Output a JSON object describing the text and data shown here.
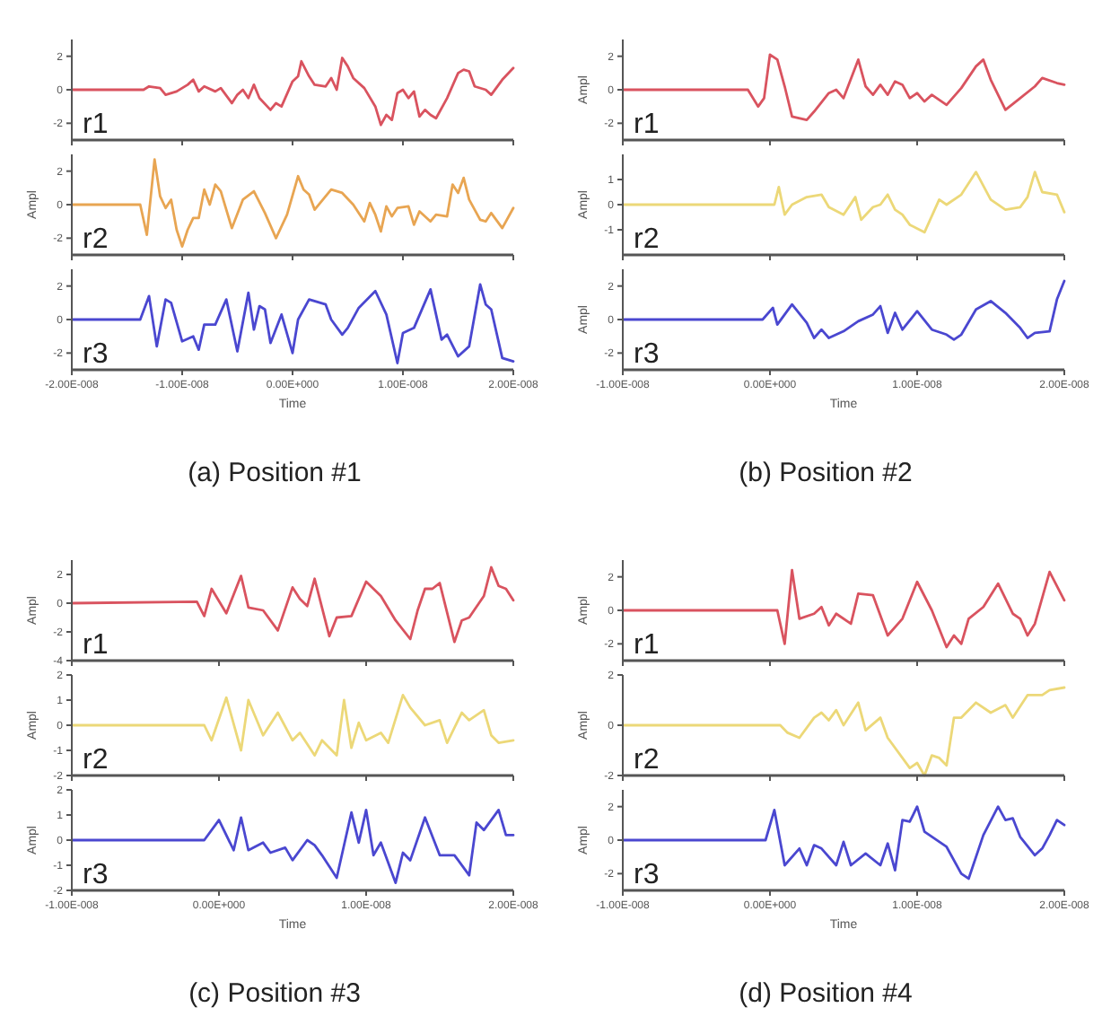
{
  "chart_data": [
    {
      "type": "line",
      "ylabel": null,
      "tick_labels": "y",
      "xlim": [
        -2e-08,
        2e-08
      ],
      "xticks": [
        {
          "value": -2e-08,
          "label": null
        },
        {
          "value": -1e-08,
          "label": null
        },
        {
          "value": 0,
          "label": null
        },
        {
          "value": 1e-08,
          "label": null
        },
        {
          "value": 2e-08,
          "label": null
        }
      ],
      "ylim": [
        -3,
        3
      ],
      "yticks": [
        -2,
        0,
        2
      ],
      "x": [
        -2e-08,
        -1.35e-08,
        -1.3e-08,
        -1.2e-08,
        -1.15e-08,
        -1.05e-08,
        -9.5e-09,
        -9e-09,
        -8.5e-09,
        -8e-09,
        -7e-09,
        -6.5e-09,
        -5.5e-09,
        -5e-09,
        -4.5e-09,
        -4e-09,
        -3.5e-09,
        -3e-09,
        -2e-09,
        -1.5e-09,
        -1e-09,
        0,
        5e-10,
        8e-10,
        1.5e-09,
        2e-09,
        3e-09,
        3.5e-09,
        4e-09,
        4.5e-09,
        5e-09,
        5.5e-09,
        6.5e-09,
        7.5e-09,
        8e-09,
        8.5e-09,
        9e-09,
        9.5e-09,
        1e-08,
        1.05e-08,
        1.1e-08,
        1.15e-08,
        1.2e-08,
        1.25e-08,
        1.3e-08,
        1.4e-08,
        1.5e-08,
        1.55e-08,
        1.6e-08,
        1.65e-08,
        1.75e-08,
        1.8e-08,
        1.9e-08,
        2e-08
      ],
      "series": [
        {
          "name": "r1",
          "color": "#d9535f",
          "values": [
            0,
            0,
            0.2,
            0.1,
            -0.3,
            -0.1,
            0.3,
            0.6,
            -0.1,
            0.2,
            -0.1,
            0.1,
            -0.8,
            -0.3,
            0,
            -0.5,
            0.3,
            -0.5,
            -1.2,
            -0.8,
            -1,
            0.5,
            0.8,
            1.7,
            0.8,
            0.3,
            0.2,
            0.7,
            0,
            1.9,
            1.4,
            0.7,
            0.1,
            -1,
            -2.1,
            -1.5,
            -1.8,
            -0.2,
            0,
            -0.5,
            -0.1,
            -1.6,
            -1.2,
            -1.5,
            -1.7,
            -0.5,
            1,
            1.2,
            1.1,
            0.2,
            0,
            -0.3,
            0.6,
            1.3
          ]
        }
      ]
    },
    {
      "type": "line",
      "ylabel": "Ampl",
      "tick_labels": "y",
      "xlim": [
        -2e-08,
        2e-08
      ],
      "xticks": [
        {
          "value": -2e-08,
          "label": null
        },
        {
          "value": -1e-08,
          "label": null
        },
        {
          "value": 0,
          "label": null
        },
        {
          "value": 1e-08,
          "label": null
        },
        {
          "value": 2e-08,
          "label": null
        }
      ],
      "ylim": [
        -3,
        3
      ],
      "yticks": [
        -2,
        0,
        2
      ],
      "x": [
        -2e-08,
        -1.38e-08,
        -1.32e-08,
        -1.25e-08,
        -1.2e-08,
        -1.15e-08,
        -1.1e-08,
        -1.05e-08,
        -1e-08,
        -9.5e-09,
        -9e-09,
        -8.5e-09,
        -8e-09,
        -7.5e-09,
        -7e-09,
        -6.5e-09,
        -5.5e-09,
        -4.5e-09,
        -3.5e-09,
        -2.5e-09,
        -1.5e-09,
        -5e-10,
        5e-10,
        1e-09,
        1.5e-09,
        2e-09,
        3e-09,
        3.5e-09,
        4.5e-09,
        5.5e-09,
        6.5e-09,
        7e-09,
        7.5e-09,
        8e-09,
        8.5e-09,
        9e-09,
        9.5e-09,
        1.05e-08,
        1.1e-08,
        1.15e-08,
        1.25e-08,
        1.3e-08,
        1.4e-08,
        1.45e-08,
        1.5e-08,
        1.55e-08,
        1.6e-08,
        1.7e-08,
        1.75e-08,
        1.8e-08,
        1.9e-08,
        2e-08
      ],
      "series": [
        {
          "name": "r2",
          "color": "#e8a552",
          "values": [
            0,
            0,
            -1.8,
            2.7,
            0.5,
            -0.2,
            0.3,
            -1.5,
            -2.5,
            -1.5,
            -0.8,
            -0.8,
            0.9,
            0,
            1.2,
            0.8,
            -1.4,
            0.3,
            0.8,
            -0.5,
            -2,
            -0.6,
            1.7,
            0.9,
            0.6,
            -0.3,
            0.5,
            0.9,
            0.7,
            0,
            -1,
            0.1,
            -0.6,
            -1.6,
            -0.1,
            -0.7,
            -0.2,
            -0.1,
            -1.2,
            -0.4,
            -1,
            -0.6,
            -0.7,
            1.2,
            0.7,
            1.6,
            0.3,
            -0.9,
            -1,
            -0.5,
            -1.4,
            -0.2
          ]
        }
      ]
    },
    {
      "type": "line",
      "ylabel": null,
      "xlabel": "Time",
      "annotations": [
        "(a) Position #1"
      ],
      "xlim": [
        -2e-08,
        2e-08
      ],
      "xticks": [
        {
          "value": -2e-08,
          "label": "-2.00E-008"
        },
        {
          "value": -1e-08,
          "label": "-1.00E-008"
        },
        {
          "value": 0,
          "label": "0.00E+000"
        },
        {
          "value": 1e-08,
          "label": "1.00E-008"
        },
        {
          "value": 2e-08,
          "label": "2.00E-008"
        }
      ],
      "ylim": [
        -3,
        3
      ],
      "yticks": [
        -2,
        0,
        2
      ],
      "x": [
        -2e-08,
        -1.38e-08,
        -1.3e-08,
        -1.23e-08,
        -1.15e-08,
        -1.1e-08,
        -1e-08,
        -9e-09,
        -8.5e-09,
        -8e-09,
        -7e-09,
        -6e-09,
        -5e-09,
        -4e-09,
        -3.5e-09,
        -3e-09,
        -2.5e-09,
        -2e-09,
        -1e-09,
        0,
        5e-10,
        1.5e-09,
        3e-09,
        3.5e-09,
        4.5e-09,
        5e-09,
        6e-09,
        7.5e-09,
        8.5e-09,
        9.5e-09,
        1e-08,
        1.1e-08,
        1.25e-08,
        1.35e-08,
        1.4e-08,
        1.5e-08,
        1.6e-08,
        1.7e-08,
        1.75e-08,
        1.8e-08,
        1.9e-08,
        2e-08
      ],
      "series": [
        {
          "name": "r3",
          "color": "#4a47d0",
          "values": [
            0,
            0,
            1.4,
            -1.6,
            1.2,
            1,
            -1.3,
            -1,
            -1.8,
            -0.3,
            -0.3,
            1.2,
            -1.9,
            1.6,
            -0.6,
            0.8,
            0.6,
            -1.4,
            0.3,
            -2,
            0,
            1.2,
            0.9,
            0,
            -0.9,
            -0.5,
            0.7,
            1.7,
            0.3,
            -2.6,
            -0.8,
            -0.5,
            1.8,
            -1.2,
            -0.9,
            -2.2,
            -1.6,
            2.1,
            0.9,
            0.6,
            -2.3,
            -2.5
          ]
        }
      ]
    },
    {
      "type": "line",
      "ylabel": "Ampl",
      "tick_labels": "y",
      "xlim": [
        -1e-08,
        2e-08
      ],
      "xticks": [
        {
          "value": -1e-08,
          "label": null
        },
        {
          "value": 0,
          "label": null
        },
        {
          "value": 1e-08,
          "label": null
        },
        {
          "value": 2e-08,
          "label": null
        }
      ],
      "ylim": [
        -3,
        3
      ],
      "yticks": [
        -2,
        0,
        2
      ],
      "x": [
        -1e-08,
        -1.5e-09,
        -8e-10,
        -4e-10,
        0,
        5e-10,
        1e-09,
        1.5e-09,
        2.5e-09,
        3e-09,
        4e-09,
        4.5e-09,
        5e-09,
        6e-09,
        6.5e-09,
        7e-09,
        7.5e-09,
        8e-09,
        8.5e-09,
        9e-09,
        9.5e-09,
        1e-08,
        1.05e-08,
        1.1e-08,
        1.2e-08,
        1.3e-08,
        1.4e-08,
        1.45e-08,
        1.5e-08,
        1.6e-08,
        1.7e-08,
        1.8e-08,
        1.85e-08,
        1.95e-08,
        2e-08
      ],
      "series": [
        {
          "name": "r1",
          "color": "#d9535f",
          "values": [
            0,
            0,
            -1,
            -0.5,
            2.1,
            1.8,
            0.2,
            -1.6,
            -1.8,
            -1.3,
            -0.2,
            0,
            -0.5,
            1.8,
            0.2,
            -0.3,
            0.3,
            -0.3,
            0.5,
            0.3,
            -0.5,
            -0.2,
            -0.7,
            -0.3,
            -0.9,
            0.1,
            1.4,
            1.8,
            0.6,
            -1.2,
            -0.5,
            0.2,
            0.7,
            0.4,
            0.3
          ]
        }
      ]
    },
    {
      "type": "line",
      "ylabel": "Ampl",
      "tick_labels": "y",
      "xlim": [
        -1e-08,
        2e-08
      ],
      "xticks": [
        {
          "value": -1e-08,
          "label": null
        },
        {
          "value": 0,
          "label": null
        },
        {
          "value": 1e-08,
          "label": null
        },
        {
          "value": 2e-08,
          "label": null
        }
      ],
      "ylim": [
        -2,
        2
      ],
      "yticks": [
        -1,
        0,
        1
      ],
      "x": [
        -1e-08,
        3e-10,
        6e-10,
        1e-09,
        1.5e-09,
        2.5e-09,
        3.5e-09,
        4e-09,
        5e-09,
        5.8e-09,
        6.2e-09,
        7e-09,
        7.5e-09,
        8e-09,
        8.5e-09,
        9e-09,
        9.5e-09,
        1.05e-08,
        1.15e-08,
        1.2e-08,
        1.3e-08,
        1.4e-08,
        1.5e-08,
        1.6e-08,
        1.7e-08,
        1.75e-08,
        1.8e-08,
        1.85e-08,
        1.95e-08,
        2e-08
      ],
      "series": [
        {
          "name": "r2",
          "color": "#ecd878",
          "values": [
            0,
            0,
            0.7,
            -0.4,
            0,
            0.3,
            0.4,
            -0.1,
            -0.4,
            0.3,
            -0.6,
            -0.1,
            0,
            0.4,
            -0.2,
            -0.4,
            -0.8,
            -1.1,
            0.2,
            0,
            0.4,
            1.3,
            0.2,
            -0.2,
            -0.1,
            0.3,
            1.3,
            0.5,
            0.4,
            -0.3
          ]
        }
      ]
    },
    {
      "type": "line",
      "ylabel": "Ampl",
      "xlabel": "Time",
      "annotations": [
        "(b) Position #2"
      ],
      "xlim": [
        -1e-08,
        2e-08
      ],
      "xticks": [
        {
          "value": -1e-08,
          "label": "-1.00E-008"
        },
        {
          "value": 0,
          "label": "0.00E+000"
        },
        {
          "value": 1e-08,
          "label": "1.00E-008"
        },
        {
          "value": 2e-08,
          "label": "2.00E-008"
        }
      ],
      "ylim": [
        -3,
        3
      ],
      "yticks": [
        -2,
        0,
        2
      ],
      "x": [
        -1e-08,
        -5e-10,
        2e-10,
        5e-10,
        1.5e-09,
        2.5e-09,
        3e-09,
        3.5e-09,
        4e-09,
        5e-09,
        6e-09,
        7e-09,
        7.5e-09,
        8e-09,
        8.5e-09,
        9e-09,
        1e-08,
        1.1e-08,
        1.2e-08,
        1.25e-08,
        1.3e-08,
        1.4e-08,
        1.5e-08,
        1.6e-08,
        1.7e-08,
        1.75e-08,
        1.8e-08,
        1.9e-08,
        1.95e-08,
        2e-08
      ],
      "series": [
        {
          "name": "r3",
          "color": "#4a47d0",
          "values": [
            0,
            0,
            0.7,
            -0.3,
            0.9,
            -0.2,
            -1.1,
            -0.6,
            -1.1,
            -0.7,
            -0.1,
            0.3,
            0.8,
            -0.8,
            0.4,
            -0.6,
            0.5,
            -0.6,
            -0.9,
            -1.2,
            -0.9,
            0.6,
            1.1,
            0.4,
            -0.5,
            -1.1,
            -0.8,
            -0.7,
            1.2,
            2.3
          ]
        }
      ]
    },
    {
      "type": "line",
      "ylabel": "Ampl",
      "tick_labels": "y",
      "xlim": [
        -1e-08,
        2e-08
      ],
      "xticks": [
        {
          "value": -1e-08,
          "label": null
        },
        {
          "value": 0,
          "label": null
        },
        {
          "value": 1e-08,
          "label": null
        },
        {
          "value": 2e-08,
          "label": null
        }
      ],
      "ylim": [
        -4,
        3
      ],
      "yticks": [
        -4,
        -2,
        0,
        2
      ],
      "x": [
        -1e-08,
        -1.5e-09,
        -1e-09,
        -5e-10,
        5e-10,
        1.5e-09,
        2e-09,
        3e-09,
        4e-09,
        5e-09,
        5.5e-09,
        6e-09,
        6.5e-09,
        7.5e-09,
        8e-09,
        9e-09,
        1e-08,
        1.1e-08,
        1.2e-08,
        1.3e-08,
        1.35e-08,
        1.4e-08,
        1.45e-08,
        1.5e-08,
        1.6e-08,
        1.65e-08,
        1.7e-08,
        1.8e-08,
        1.85e-08,
        1.9e-08,
        1.95e-08,
        2e-08
      ],
      "series": [
        {
          "name": "r1",
          "color": "#d9535f",
          "values": [
            0,
            0.1,
            -0.9,
            1,
            -0.7,
            1.9,
            -0.3,
            -0.5,
            -1.9,
            1.1,
            0.3,
            -0.2,
            1.7,
            -2.3,
            -1,
            -0.9,
            1.5,
            0.5,
            -1.2,
            -2.5,
            -0.5,
            1,
            1,
            1.4,
            -2.7,
            -1.2,
            -1,
            0.5,
            2.5,
            1.2,
            1,
            0.2
          ]
        }
      ]
    },
    {
      "type": "line",
      "ylabel": "Ampl",
      "tick_labels": "y",
      "xlim": [
        -1e-08,
        2e-08
      ],
      "xticks": [
        {
          "value": -1e-08,
          "label": null
        },
        {
          "value": 0,
          "label": null
        },
        {
          "value": 1e-08,
          "label": null
        },
        {
          "value": 2e-08,
          "label": null
        }
      ],
      "ylim": [
        -2,
        2
      ],
      "yticks": [
        -2,
        -1,
        0,
        1,
        2
      ],
      "x": [
        -1e-08,
        -1e-09,
        -5e-10,
        5e-10,
        1.5e-09,
        2e-09,
        3e-09,
        4e-09,
        5e-09,
        5.5e-09,
        6.5e-09,
        7e-09,
        8e-09,
        8.5e-09,
        9e-09,
        9.5e-09,
        1e-08,
        1.1e-08,
        1.15e-08,
        1.25e-08,
        1.3e-08,
        1.4e-08,
        1.5e-08,
        1.55e-08,
        1.65e-08,
        1.7e-08,
        1.8e-08,
        1.85e-08,
        1.9e-08,
        2e-08
      ],
      "series": [
        {
          "name": "r2",
          "color": "#ecd878",
          "values": [
            0,
            0,
            -0.6,
            1.1,
            -1,
            1,
            -0.4,
            0.5,
            -0.6,
            -0.3,
            -1.2,
            -0.6,
            -1.2,
            1,
            -0.9,
            0.1,
            -0.6,
            -0.3,
            -0.7,
            1.2,
            0.7,
            0,
            0.2,
            -0.7,
            0.5,
            0.2,
            0.6,
            -0.4,
            -0.7,
            -0.6
          ]
        }
      ]
    },
    {
      "type": "line",
      "ylabel": "Ampl",
      "xlabel": "Time",
      "annotations": [
        "(c) Position #3"
      ],
      "xlim": [
        -1e-08,
        2e-08
      ],
      "xticks": [
        {
          "value": -1e-08,
          "label": "-1.00E-008"
        },
        {
          "value": 0,
          "label": "0.00E+000"
        },
        {
          "value": 1e-08,
          "label": "1.00E-008"
        },
        {
          "value": 2e-08,
          "label": "2.00E-008"
        }
      ],
      "ylim": [
        -2,
        2
      ],
      "yticks": [
        -2,
        -1,
        0,
        1,
        2
      ],
      "x": [
        -1e-08,
        -1e-09,
        0,
        1e-09,
        1.5e-09,
        2e-09,
        3e-09,
        3.5e-09,
        4.5e-09,
        5e-09,
        6e-09,
        6.5e-09,
        7e-09,
        8e-09,
        9e-09,
        9.5e-09,
        1e-08,
        1.05e-08,
        1.1e-08,
        1.2e-08,
        1.25e-08,
        1.3e-08,
        1.4e-08,
        1.5e-08,
        1.6e-08,
        1.7e-08,
        1.75e-08,
        1.8e-08,
        1.9e-08,
        1.95e-08,
        2e-08
      ],
      "series": [
        {
          "name": "r3",
          "color": "#4a47d0",
          "values": [
            0,
            0,
            0.8,
            -0.4,
            0.9,
            -0.4,
            -0.1,
            -0.5,
            -0.3,
            -0.8,
            0,
            -0.2,
            -0.6,
            -1.5,
            1.1,
            -0.1,
            1.2,
            -0.6,
            -0.1,
            -1.7,
            -0.5,
            -0.8,
            0.9,
            -0.6,
            -0.6,
            -1.4,
            0.7,
            0.4,
            1.2,
            0.2,
            0.2
          ]
        }
      ]
    },
    {
      "type": "line",
      "ylabel": "Ampl",
      "tick_labels": "y",
      "xlim": [
        -1e-08,
        2e-08
      ],
      "xticks": [
        {
          "value": -1e-08,
          "label": null
        },
        {
          "value": 0,
          "label": null
        },
        {
          "value": 1e-08,
          "label": null
        },
        {
          "value": 2e-08,
          "label": null
        }
      ],
      "ylim": [
        -3,
        3
      ],
      "yticks": [
        -2,
        0,
        2
      ],
      "x": [
        -1e-08,
        5e-10,
        1e-09,
        1.5e-09,
        2e-09,
        3e-09,
        3.5e-09,
        4e-09,
        4.5e-09,
        5.5e-09,
        6e-09,
        7e-09,
        8e-09,
        9e-09,
        1e-08,
        1.1e-08,
        1.2e-08,
        1.25e-08,
        1.3e-08,
        1.35e-08,
        1.45e-08,
        1.55e-08,
        1.65e-08,
        1.7e-08,
        1.75e-08,
        1.8e-08,
        1.9e-08,
        2e-08
      ],
      "series": [
        {
          "name": "r1",
          "color": "#d9535f",
          "values": [
            0,
            0,
            -2,
            2.4,
            -0.5,
            -0.2,
            0.2,
            -0.9,
            -0.2,
            -0.8,
            1,
            0.9,
            -1.5,
            -0.5,
            1.7,
            0,
            -2.2,
            -1.5,
            -2,
            -0.5,
            0.2,
            1.6,
            -0.2,
            -0.5,
            -1.5,
            -0.8,
            2.3,
            0.6
          ]
        }
      ]
    },
    {
      "type": "line",
      "ylabel": "Ampl",
      "tick_labels": "y",
      "xlim": [
        -1e-08,
        2e-08
      ],
      "xticks": [
        {
          "value": -1e-08,
          "label": null
        },
        {
          "value": 0,
          "label": null
        },
        {
          "value": 1e-08,
          "label": null
        },
        {
          "value": 2e-08,
          "label": null
        }
      ],
      "ylim": [
        -2,
        2
      ],
      "yticks": [
        -2,
        0,
        2
      ],
      "x": [
        -1e-08,
        7e-10,
        1.2e-09,
        2e-09,
        3e-09,
        3.5e-09,
        4e-09,
        4.5e-09,
        5e-09,
        6e-09,
        6.5e-09,
        7.5e-09,
        8e-09,
        9.5e-09,
        1e-08,
        1.05e-08,
        1.1e-08,
        1.15e-08,
        1.2e-08,
        1.25e-08,
        1.3e-08,
        1.4e-08,
        1.5e-08,
        1.6e-08,
        1.65e-08,
        1.75e-08,
        1.85e-08,
        1.9e-08,
        2e-08
      ],
      "series": [
        {
          "name": "r2",
          "color": "#ecd878",
          "values": [
            0,
            0,
            -0.3,
            -0.5,
            0.3,
            0.5,
            0.2,
            0.6,
            0,
            0.9,
            -0.2,
            0.3,
            -0.5,
            -1.7,
            -1.5,
            -2,
            -1.2,
            -1.3,
            -1.6,
            0.3,
            0.3,
            0.9,
            0.5,
            0.8,
            0.3,
            1.2,
            1.2,
            1.4,
            1.5
          ]
        }
      ]
    },
    {
      "type": "line",
      "ylabel": "Ampl",
      "xlabel": "Time",
      "annotations": [
        "(d) Position #4"
      ],
      "xlim": [
        -1e-08,
        2e-08
      ],
      "xticks": [
        {
          "value": -1e-08,
          "label": "-1.00E-008"
        },
        {
          "value": 0,
          "label": "0.00E+000"
        },
        {
          "value": 1e-08,
          "label": "1.00E-008"
        },
        {
          "value": 2e-08,
          "label": "2.00E-008"
        }
      ],
      "ylim": [
        -3,
        3
      ],
      "yticks": [
        -2,
        0,
        2
      ],
      "x": [
        -1e-08,
        -3e-10,
        3e-10,
        1e-09,
        2e-09,
        2.5e-09,
        3e-09,
        3.5e-09,
        4.5e-09,
        5e-09,
        5.5e-09,
        6.5e-09,
        7.5e-09,
        8e-09,
        8.5e-09,
        9e-09,
        9.5e-09,
        1e-08,
        1.05e-08,
        1.2e-08,
        1.3e-08,
        1.35e-08,
        1.45e-08,
        1.55e-08,
        1.6e-08,
        1.65e-08,
        1.7e-08,
        1.8e-08,
        1.85e-08,
        1.9e-08,
        1.95e-08,
        2e-08
      ],
      "series": [
        {
          "name": "r3",
          "color": "#4a47d0",
          "values": [
            0,
            0,
            1.8,
            -1.5,
            -0.5,
            -1.5,
            -0.3,
            -0.5,
            -1.5,
            -0.1,
            -1.5,
            -0.8,
            -1.5,
            -0.2,
            -1.8,
            1.2,
            1.1,
            2,
            0.5,
            -0.4,
            -2,
            -2.3,
            0.3,
            2,
            1.2,
            1.3,
            0.2,
            -0.9,
            -0.5,
            0.3,
            1.2,
            0.9
          ]
        }
      ]
    }
  ]
}
